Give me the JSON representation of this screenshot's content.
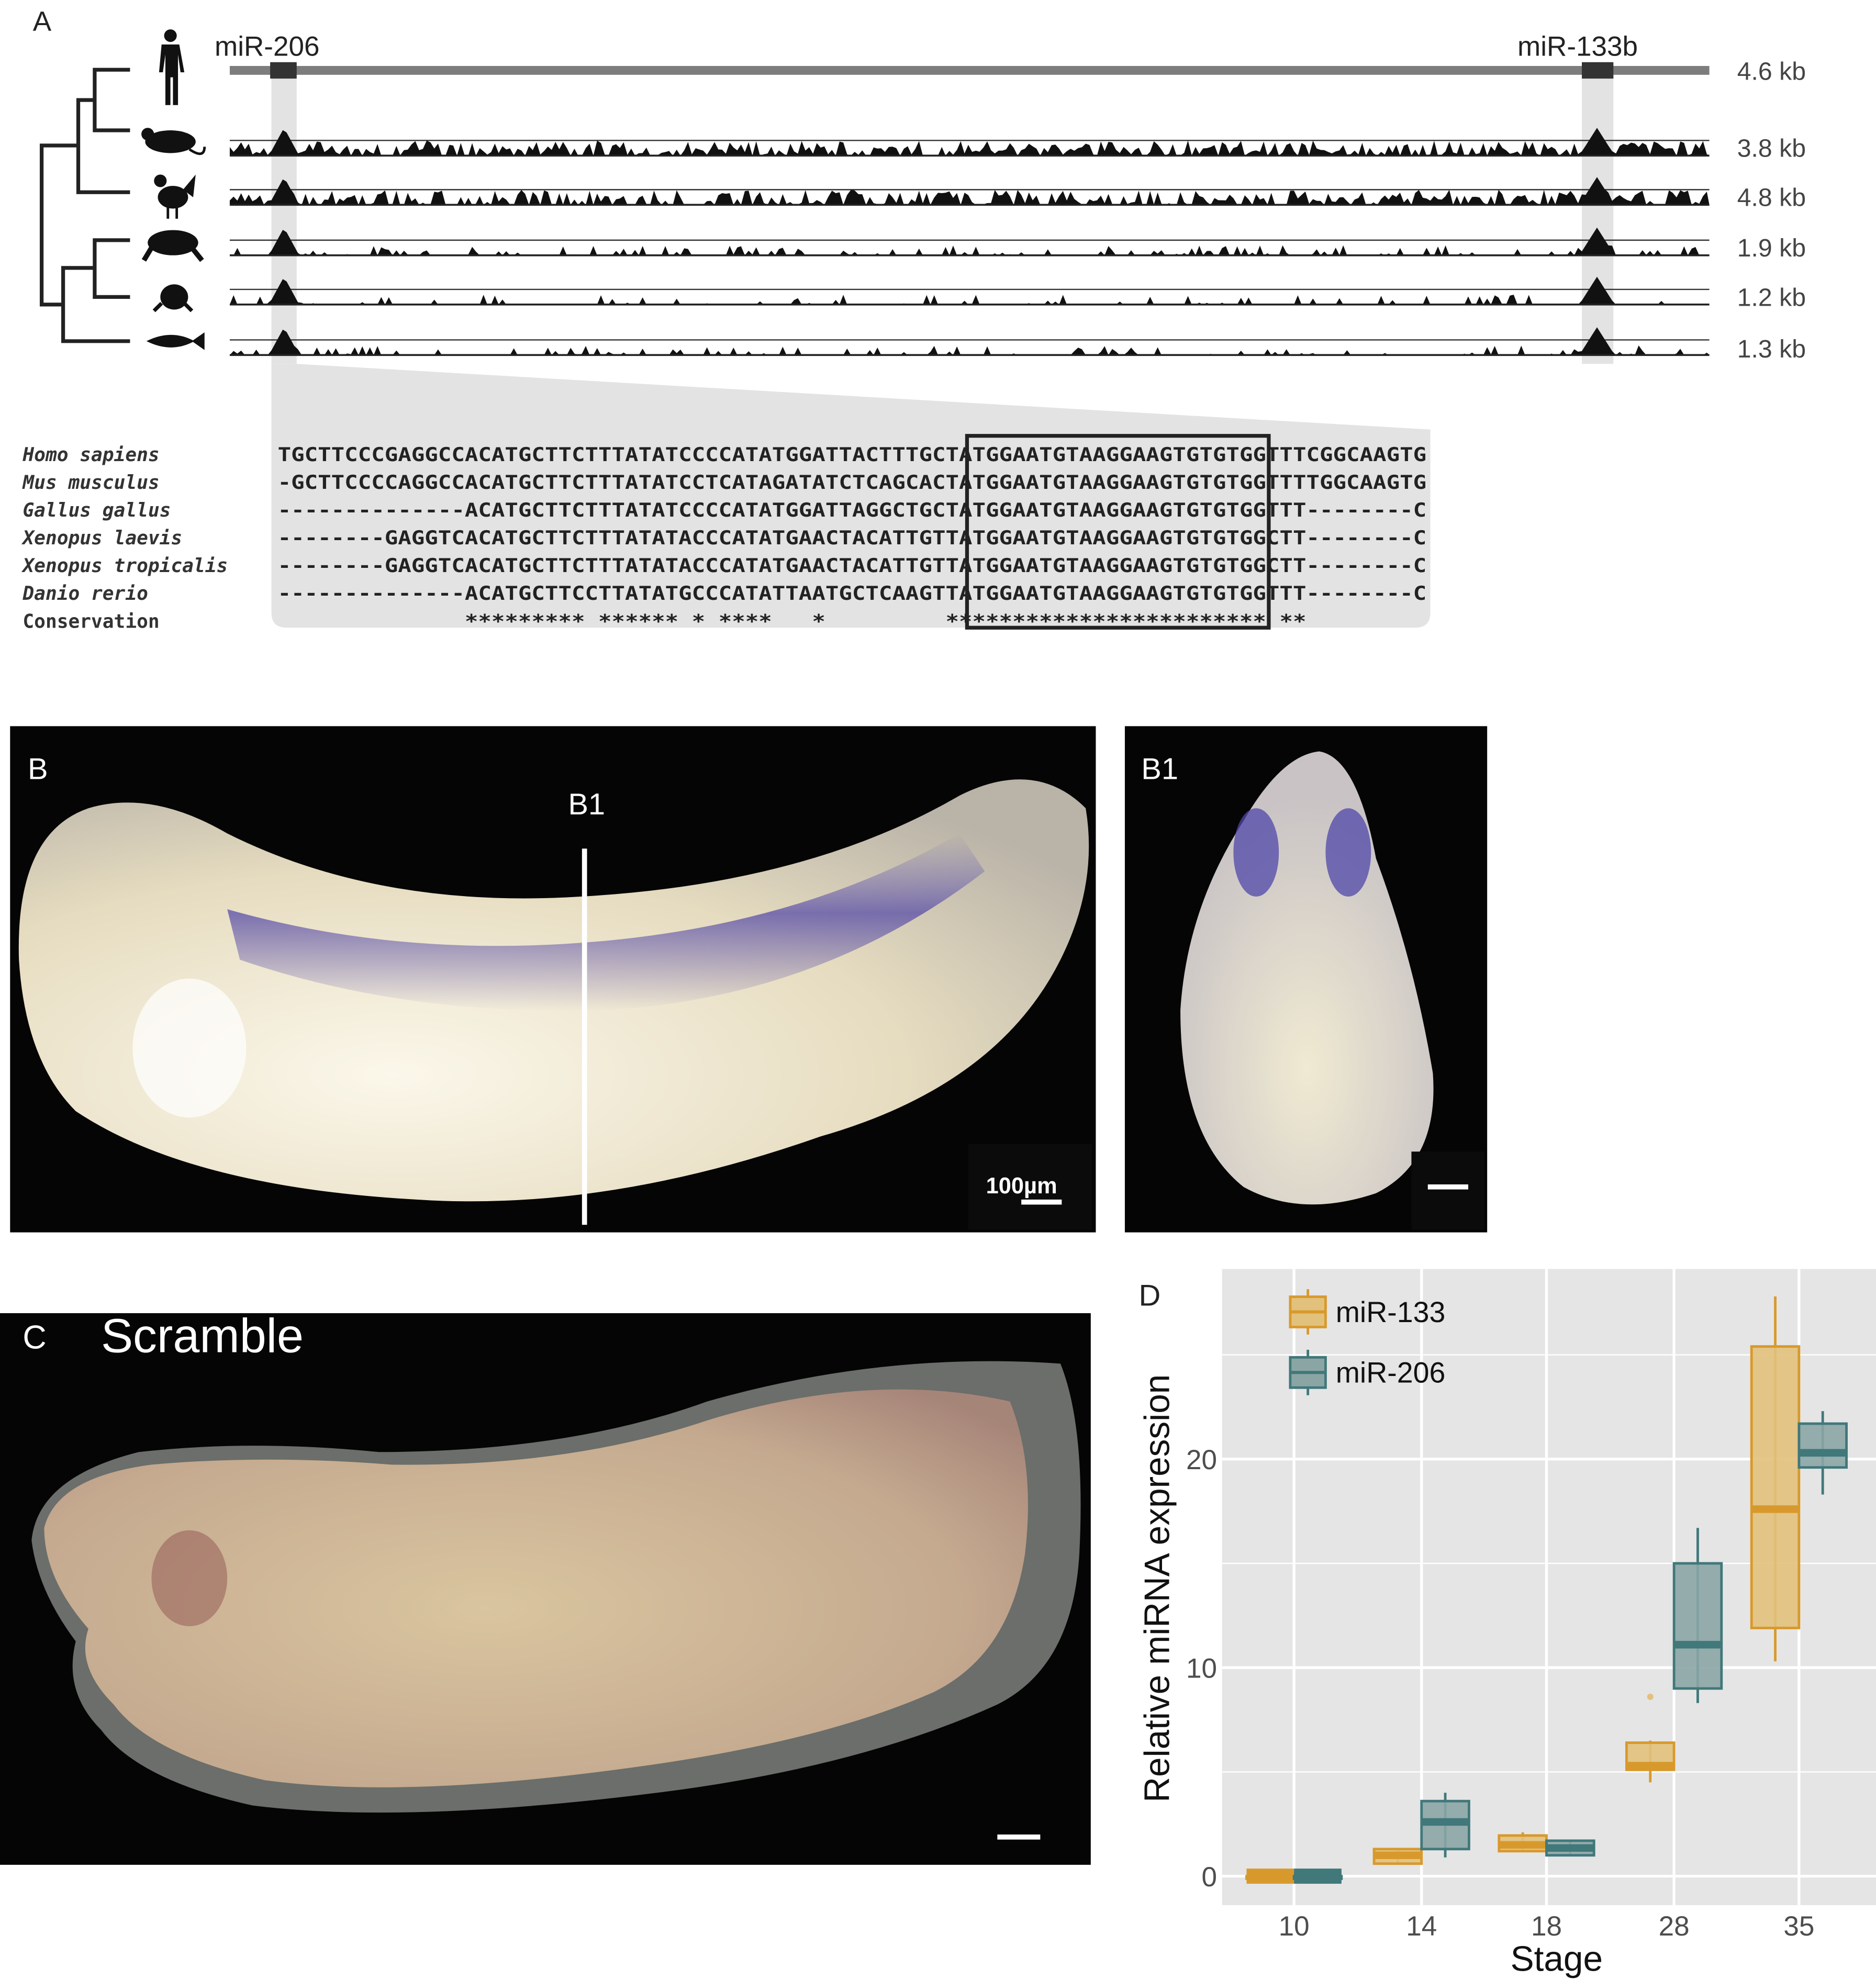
{
  "panel_a": {
    "label": "A",
    "mir_left": "miR-206",
    "mir_right": "miR-133b",
    "track_sizes": [
      "4.6 kb",
      "3.8 kb",
      "4.8 kb",
      "1.9 kb",
      "1.2 kb",
      "1.3 kb"
    ],
    "species_icons": [
      "human-icon",
      "mouse-icon",
      "chicken-icon",
      "frog-icon",
      "tadpole-frog-icon",
      "fish-icon"
    ],
    "alignment": [
      {
        "species": "Homo sapiens",
        "sequence": "TGCTTCCCGAGGCCACATGCTTCTTTATATCCCCATATGGATTACTTTGCTATGGAATGTAAGGAAGTGTGTGGTTTCGGCAAGTG"
      },
      {
        "species": "Mus musculus",
        "sequence": "-GCTTCCCCAGGCCACATGCTTCTTTATATCCTCATAGATATCTCAGCACTATGGAATGTAAGGAAGTGTGTGGTTTTGGCAAGTG"
      },
      {
        "species": "Gallus gallus",
        "sequence": "--------------ACATGCTTCTTTATATCCCCATATGGATTAGGCTGCTATGGAATGTAAGGAAGTGTGTGGTTT--------C"
      },
      {
        "species": "Xenopus laevis",
        "sequence": "--------GAGGTCACATGCTTCTTTATATACCCATATGAACTACATTGTTATGGAATGTAAGGAAGTGTGTGGCTT--------C"
      },
      {
        "species": "Xenopus tropicalis",
        "sequence": "--------GAGGTCACATGCTTCTTTATATACCCATATGAACTACATTGTTATGGAATGTAAGGAAGTGTGTGGCTT--------C"
      },
      {
        "species": "Danio rerio",
        "sequence": "--------------ACATGCTTCCTTATATGCCCATATTAATGCTCAAGTTATGGAATGTAAGGAAGTGTGTGGTTT--------C"
      }
    ],
    "conservation_label": "Conservation",
    "conservation": "              ********* ****** * ****   *         ************************ **"
  },
  "panel_b": {
    "label": "B",
    "section_label": "B1",
    "scale_bar": "100µm"
  },
  "panel_b1": {
    "label": "B1"
  },
  "panel_c": {
    "label": "C",
    "title": "Scramble"
  },
  "chart_data": {
    "panel_label": "D",
    "type": "boxplot",
    "xlabel": "Stage",
    "ylabel": "Relative miRNA expression",
    "categories": [
      "10",
      "14",
      "18",
      "28",
      "35"
    ],
    "yticks": [
      0,
      10,
      20
    ],
    "ylim": [
      -1.5,
      29
    ],
    "grid": true,
    "legend_position": "top-left",
    "series": [
      {
        "name": "miR-133",
        "color": "#d8992c",
        "fill": "#e2c17c",
        "boxes": [
          {
            "min": 0,
            "q1": 0,
            "median": 0,
            "q3": 0,
            "max": 0
          },
          {
            "min": 0.6,
            "q1": 0.6,
            "median": 1.0,
            "q3": 1.3,
            "max": 1.3
          },
          {
            "min": 1.2,
            "q1": 1.2,
            "median": 1.5,
            "q3": 1.95,
            "max": 2.1
          },
          {
            "min": 4.5,
            "q1": 5.1,
            "median": 5.3,
            "q3": 6.4,
            "max": 6.5,
            "outliers": [
              8.6
            ]
          },
          {
            "min": 10.3,
            "q1": 11.9,
            "median": 17.6,
            "q3": 25.4,
            "max": 27.8
          }
        ]
      },
      {
        "name": "miR-206",
        "color": "#41787a",
        "fill": "#8ba5a5",
        "boxes": [
          {
            "min": 0,
            "q1": 0,
            "median": 0,
            "q3": 0,
            "max": 0
          },
          {
            "min": 0.9,
            "q1": 1.3,
            "median": 2.6,
            "q3": 3.6,
            "max": 4.0
          },
          {
            "min": 1.0,
            "q1": 1.0,
            "median": 1.35,
            "q3": 1.7,
            "max": 1.7
          },
          {
            "min": 8.3,
            "q1": 9.0,
            "median": 11.1,
            "q3": 15.0,
            "max": 16.7
          },
          {
            "min": 18.3,
            "q1": 19.6,
            "median": 20.3,
            "q3": 21.7,
            "max": 22.3
          }
        ]
      }
    ]
  }
}
